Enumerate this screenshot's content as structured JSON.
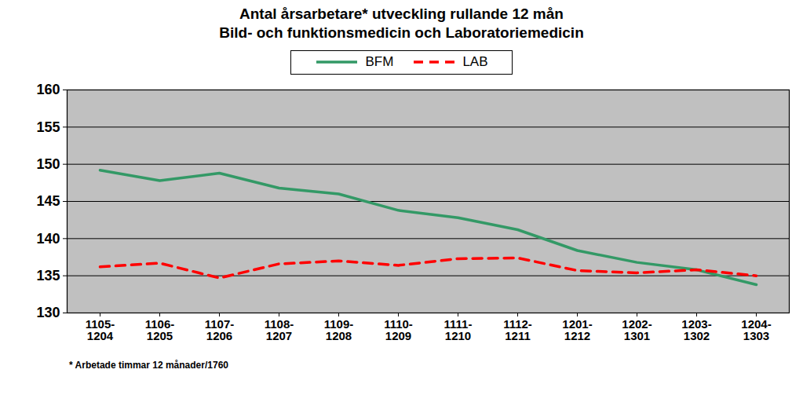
{
  "chart_data": {
    "type": "line",
    "title": "Antal årsarbetare* utveckling rullande 12 mån",
    "subtitle": "Bild- och funktionsmedicin och Laboratoriemedicin",
    "categories": [
      "1105-1204",
      "1106-1205",
      "1107-1206",
      "1108-1207",
      "1109-1208",
      "1110-1209",
      "1111-1210",
      "1112-1211",
      "1201-1212",
      "1202-1301",
      "1203-1302",
      "1204-1303"
    ],
    "series": [
      {
        "name": "BFM",
        "color": "#339966",
        "line_style": "solid",
        "values": [
          149.2,
          147.8,
          148.8,
          146.8,
          146.0,
          143.8,
          142.8,
          141.2,
          138.4,
          136.8,
          135.8,
          133.8
        ]
      },
      {
        "name": "LAB",
        "color": "#ff0000",
        "line_style": "dashed",
        "values": [
          136.2,
          136.7,
          134.7,
          136.6,
          137.0,
          136.4,
          137.3,
          137.4,
          135.7,
          135.4,
          135.8,
          135.0
        ]
      }
    ],
    "ylim": [
      130,
      160
    ],
    "yticks": [
      130,
      135,
      140,
      145,
      150,
      155,
      160
    ],
    "grid": true,
    "legend": "top",
    "annotations": [
      "* Arbetade timmar 12 månader/1760"
    ]
  }
}
